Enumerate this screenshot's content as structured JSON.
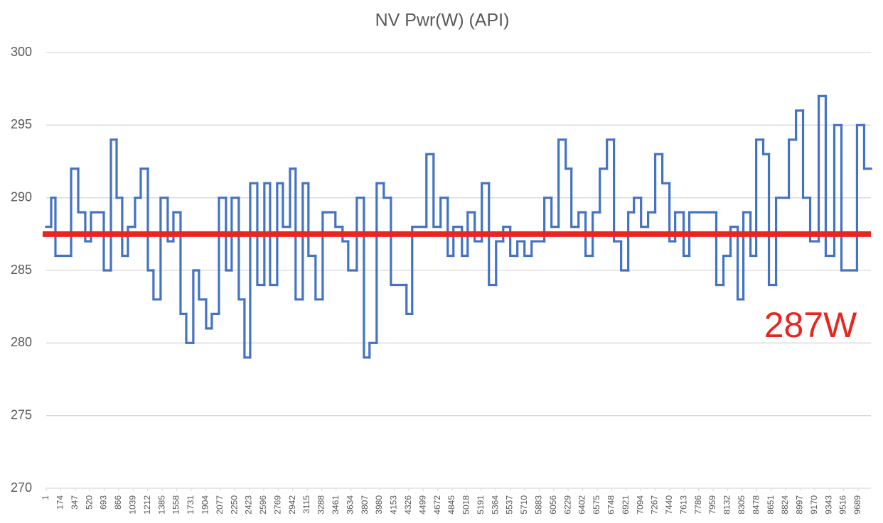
{
  "chart_data": {
    "type": "step",
    "title": "NV Pwr(W) (API)",
    "x": [
      1,
      60,
      111,
      298,
      383,
      467,
      535,
      688,
      773,
      841,
      908,
      976,
      1061,
      1129,
      1214,
      1281,
      1366,
      1451,
      1519,
      1604,
      1672,
      1756,
      1824,
      1909,
      1977,
      2062,
      2146,
      2214,
      2299,
      2367,
      2435,
      2520,
      2604,
      2672,
      2757,
      2825,
      2910,
      2977,
      3062,
      3130,
      3215,
      3300,
      3452,
      3537,
      3605,
      3707,
      3792,
      3859,
      3944,
      4029,
      4114,
      4300,
      4368,
      4538,
      4623,
      4707,
      4792,
      4860,
      4962,
      5030,
      5114,
      5199,
      5284,
      5369,
      5454,
      5538,
      5623,
      5708,
      5793,
      5945,
      6030,
      6115,
      6200,
      6268,
      6353,
      6437,
      6522,
      6607,
      6692,
      6776,
      6861,
      6946,
      7014,
      7099,
      7183,
      7268,
      7353,
      7438,
      7506,
      7607,
      7675,
      7997,
      8082,
      8167,
      8252,
      8320,
      8405,
      8473,
      8557,
      8625,
      8710,
      8863,
      8948,
      9032,
      9117,
      9219,
      9303,
      9405,
      9490,
      9676,
      9761
    ],
    "series": [
      {
        "name": "NV Pwr(W) (API)",
        "color": "#4472c4",
        "values": [
          288,
          290,
          286,
          292,
          289,
          287,
          289,
          285,
          294,
          290,
          286,
          288,
          290,
          292,
          285,
          283,
          290,
          287,
          289,
          282,
          280,
          285,
          283,
          281,
          282,
          290,
          285,
          290,
          283,
          279,
          291,
          284,
          291,
          284,
          291,
          288,
          292,
          283,
          291,
          286,
          283,
          289,
          288,
          287,
          285,
          290,
          279,
          280,
          291,
          290,
          284,
          282,
          288,
          293,
          288,
          290,
          286,
          288,
          286,
          289,
          287,
          291,
          284,
          287,
          288,
          286,
          287,
          286,
          287,
          290,
          288,
          294,
          292,
          288,
          289,
          286,
          289,
          292,
          294,
          287,
          285,
          289,
          290,
          288,
          289,
          293,
          291,
          287,
          289,
          286,
          289,
          284,
          286,
          288,
          283,
          289,
          286,
          294,
          293,
          284,
          290,
          294,
          296,
          290,
          287,
          297,
          286,
          295,
          285,
          295,
          292
        ]
      }
    ],
    "xlim": [
      1,
      9842
    ],
    "xticks": [
      1,
      174,
      347,
      520,
      693,
      866,
      1039,
      1212,
      1385,
      1558,
      1731,
      1904,
      2077,
      2250,
      2423,
      2596,
      2769,
      2942,
      3115,
      3288,
      3461,
      3634,
      3807,
      3980,
      4153,
      4326,
      4499,
      4672,
      4845,
      5018,
      5191,
      5364,
      5537,
      5710,
      5883,
      6056,
      6229,
      6402,
      6575,
      6748,
      6921,
      7094,
      7267,
      7440,
      7613,
      7786,
      7959,
      8132,
      8305,
      8478,
      8651,
      8824,
      8997,
      9170,
      9343,
      9516,
      9689
    ],
    "ylim": [
      270,
      300
    ],
    "yticks": [
      270,
      275,
      280,
      285,
      290,
      295,
      300
    ],
    "grid": true,
    "reference_line": {
      "value": 287.5,
      "color": "#e8261f"
    },
    "annotations": [
      {
        "text": "287W",
        "color": "#e8261f"
      }
    ]
  }
}
